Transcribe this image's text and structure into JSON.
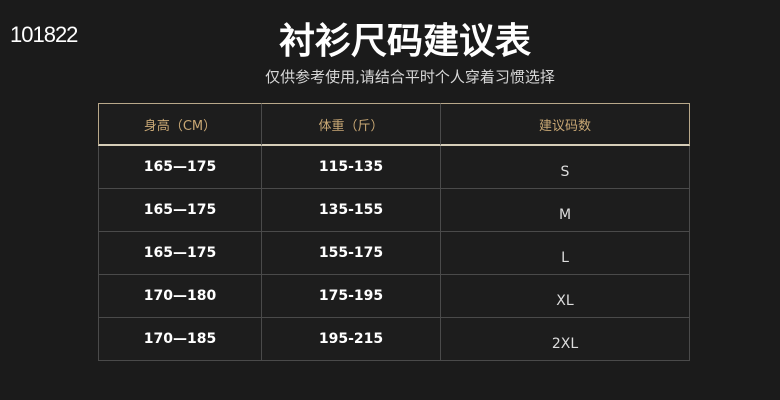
{
  "corner_text": "101822",
  "title": "衬衫尺码建议表",
  "subtitle": "仅供参考使用,请结合平时个人穿着习惯选择",
  "table": {
    "headers": [
      "身高（CM）",
      "体重（斤）",
      "建议码数"
    ],
    "rows": [
      [
        "165—175",
        "115-135",
        "S"
      ],
      [
        "165—175",
        "135-155",
        "M"
      ],
      [
        "165—175",
        "155-175",
        "L"
      ],
      [
        "170—180",
        "175-195",
        "XL"
      ],
      [
        "170—185",
        "195-215",
        "2XL"
      ]
    ]
  },
  "colors": {
    "background": "#1b1b1b",
    "header_text": "#c8a774"
  }
}
